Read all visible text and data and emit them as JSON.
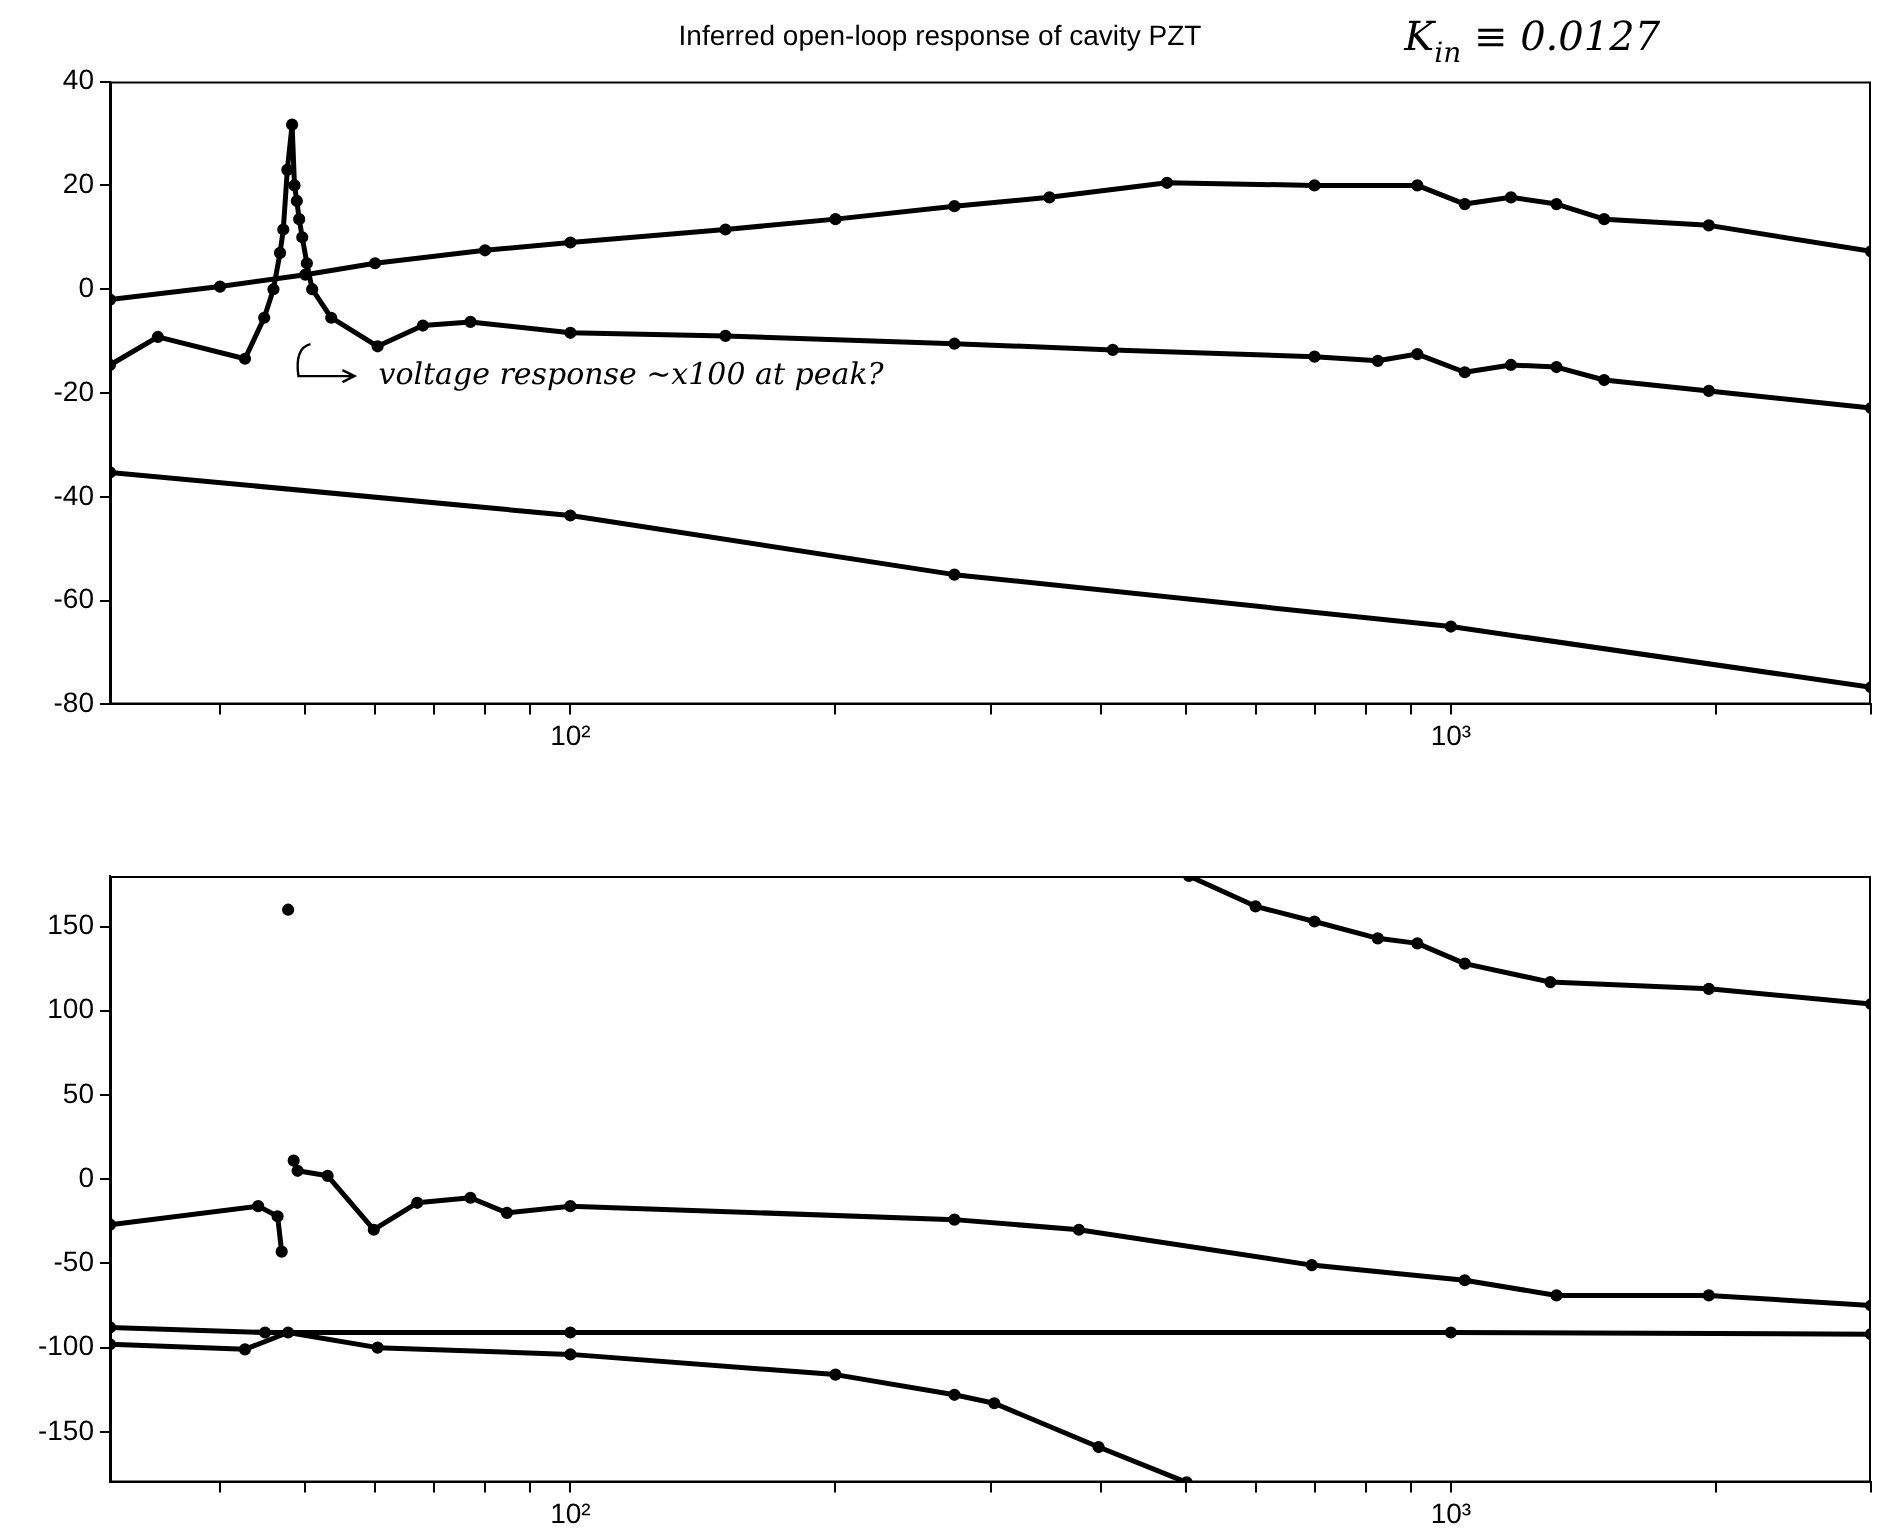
{
  "chart_data": [
    {
      "type": "line",
      "title": "Inferred open-loop response of cavity PZT",
      "annotations": [
        "K$_{in}$ ≡ 0.0127",
        "voltage response ~x100 at peak?"
      ],
      "log": "x",
      "marker": "circle",
      "grid": false,
      "legend": false,
      "xlim": [
        30,
        3000
      ],
      "xticks": [
        {
          "value": 40,
          "label": null
        },
        {
          "value": 50,
          "label": null
        },
        {
          "value": 60,
          "label": null
        },
        {
          "value": 70,
          "label": null
        },
        {
          "value": 80,
          "label": null
        },
        {
          "value": 90,
          "label": null
        },
        {
          "value": 100,
          "label": "10²"
        },
        {
          "value": 200,
          "label": null
        },
        {
          "value": 300,
          "label": null
        },
        {
          "value": 400,
          "label": null
        },
        {
          "value": 500,
          "label": null
        },
        {
          "value": 600,
          "label": null
        },
        {
          "value": 700,
          "label": null
        },
        {
          "value": 800,
          "label": null
        },
        {
          "value": 900,
          "label": null
        },
        {
          "value": 1000,
          "label": "10³"
        },
        {
          "value": 2000,
          "label": null
        },
        {
          "value": 3000,
          "label": null
        }
      ],
      "ylim": [
        -80,
        40
      ],
      "yticks": [
        -80,
        -60,
        -40,
        -20,
        0,
        20,
        40
      ],
      "series": [
        {
          "color": "#000000",
          "x": [
            30,
            40,
            50,
            60,
            80,
            100,
            150,
            200,
            273,
            350,
            476,
            700,
            916,
            1037,
            1170,
            1318,
            1493,
            1963,
            3000
          ],
          "values": [
            -2,
            0.5,
            2.8,
            5,
            7.5,
            9,
            11.5,
            13.5,
            16,
            17.7,
            20.5,
            20,
            20,
            16.4,
            17.7,
            16.4,
            13.5,
            12.3,
            7.3
          ]
        },
        {
          "color": "#000000",
          "x": [
            30,
            34,
            42.7,
            44.9,
            46,
            46.8,
            47.2,
            47.7,
            48.3,
            48.6,
            48.9,
            49.2,
            49.6,
            50.2,
            50.9,
            53.5,
            60.4,
            68,
            77,
            100,
            150,
            273,
            413,
            700,
            826,
            916,
            1037,
            1170,
            1318,
            1493,
            1963,
            3000
          ],
          "values": [
            -14.6,
            -9.2,
            -13.4,
            -5.5,
            0,
            7,
            11.5,
            23,
            31.7,
            20,
            17,
            13.5,
            10,
            5,
            0,
            -5.5,
            -11,
            -7,
            -6.3,
            -8.4,
            -9,
            -10.5,
            -11.7,
            -13,
            -13.8,
            -12.5,
            -16,
            -14.6,
            -15,
            -17.5,
            -19.6,
            -22.9
          ]
        },
        {
          "color": "#000000",
          "x": [
            30,
            100,
            273,
            1000,
            3000
          ],
          "values": [
            -35.3,
            -43.6,
            -55,
            -65,
            -76.7
          ]
        }
      ]
    },
    {
      "type": "line",
      "log": "x",
      "marker": "circle",
      "grid": false,
      "legend": false,
      "xlim": [
        30,
        3000
      ],
      "xticks": [
        {
          "value": 40,
          "label": null
        },
        {
          "value": 50,
          "label": null
        },
        {
          "value": 60,
          "label": null
        },
        {
          "value": 70,
          "label": null
        },
        {
          "value": 80,
          "label": null
        },
        {
          "value": 90,
          "label": null
        },
        {
          "value": 100,
          "label": "10²"
        },
        {
          "value": 200,
          "label": null
        },
        {
          "value": 300,
          "label": null
        },
        {
          "value": 400,
          "label": null
        },
        {
          "value": 500,
          "label": null
        },
        {
          "value": 600,
          "label": null
        },
        {
          "value": 700,
          "label": null
        },
        {
          "value": 800,
          "label": null
        },
        {
          "value": 900,
          "label": null
        },
        {
          "value": 1000,
          "label": "10³"
        },
        {
          "value": 2000,
          "label": null
        },
        {
          "value": 3000,
          "label": null
        }
      ],
      "ylim": [
        -180,
        180
      ],
      "yticks": [
        -150,
        -100,
        -50,
        0,
        50,
        100,
        150
      ],
      "series": [
        {
          "color": "#000000",
          "x": [
            504,
            600,
            700,
            826,
            916,
            1037,
            1297,
            1963,
            3000
          ],
          "values": [
            180,
            162,
            153,
            143,
            140,
            128,
            117,
            113,
            104
          ]
        },
        {
          "color": "#000000",
          "x": [
            30,
            44.2,
            46.5,
            47,
            47.4,
            47.8,
            48.2,
            48.5,
            49,
            53,
            59.8,
            67,
            77,
            84.7,
            100,
            273,
            378,
            695,
            1037,
            1318,
            1963,
            3000
          ],
          "values": [
            -27,
            -16,
            -22,
            -43,
            null,
            160,
            null,
            11,
            5,
            2,
            -30,
            -14,
            -11,
            -20,
            -16,
            -24,
            -30,
            -51,
            -60,
            -69,
            -69,
            -75
          ]
        },
        {
          "color": "#000000",
          "x": [
            30,
            45,
            100,
            1000,
            3000
          ],
          "values": [
            -88,
            -91,
            -91,
            -91,
            -92
          ]
        },
        {
          "color": "#000000",
          "x": [
            30,
            42.7,
            47.8,
            60.4,
            100,
            200,
            273,
            303,
            398,
            501
          ],
          "values": [
            -98,
            -101,
            -91,
            -100,
            -104,
            -116,
            -128,
            -133,
            -159,
            -180
          ]
        }
      ]
    }
  ]
}
